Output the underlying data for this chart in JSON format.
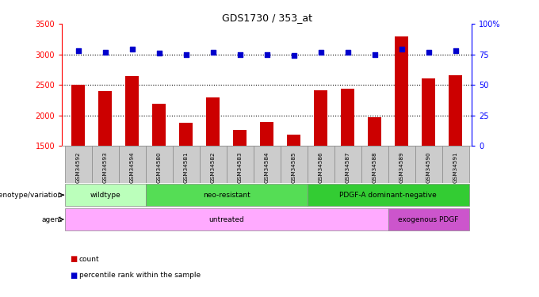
{
  "title": "GDS1730 / 353_at",
  "samples": [
    "GSM34592",
    "GSM34593",
    "GSM34594",
    "GSM34580",
    "GSM34581",
    "GSM34582",
    "GSM34583",
    "GSM34584",
    "GSM34585",
    "GSM34586",
    "GSM34587",
    "GSM34588",
    "GSM34589",
    "GSM34590",
    "GSM34591"
  ],
  "counts": [
    2500,
    2400,
    2650,
    2190,
    1880,
    2300,
    1760,
    1900,
    1690,
    2410,
    2440,
    1970,
    3290,
    2600,
    2660
  ],
  "percentiles": [
    78,
    77,
    79,
    76,
    75,
    77,
    75,
    75,
    74,
    77,
    77,
    75,
    79,
    77,
    78
  ],
  "ylim_left": [
    1500,
    3500
  ],
  "ylim_right": [
    0,
    100
  ],
  "yticks_left": [
    1500,
    2000,
    2500,
    3000,
    3500
  ],
  "yticks_right": [
    0,
    25,
    50,
    75,
    100
  ],
  "ytick_labels_right": [
    "0",
    "25",
    "50",
    "75",
    "100%"
  ],
  "hlines": [
    2000,
    2500,
    3000
  ],
  "bar_color": "#cc0000",
  "dot_color": "#0000cc",
  "bar_width": 0.5,
  "genotype_groups": [
    {
      "label": "wildtype",
      "start": 0,
      "end": 3,
      "color": "#bbffbb"
    },
    {
      "label": "neo-resistant",
      "start": 3,
      "end": 9,
      "color": "#55dd55"
    },
    {
      "label": "PDGF-A dominant-negative",
      "start": 9,
      "end": 15,
      "color": "#33cc33"
    }
  ],
  "agent_groups": [
    {
      "label": "untreated",
      "start": 0,
      "end": 12,
      "color": "#ffaaff"
    },
    {
      "label": "exogenous PDGF",
      "start": 12,
      "end": 15,
      "color": "#cc55cc"
    }
  ],
  "sample_box_color": "#cccccc",
  "legend_count_color": "#cc0000",
  "legend_dot_color": "#0000cc",
  "background_color": "#ffffff"
}
